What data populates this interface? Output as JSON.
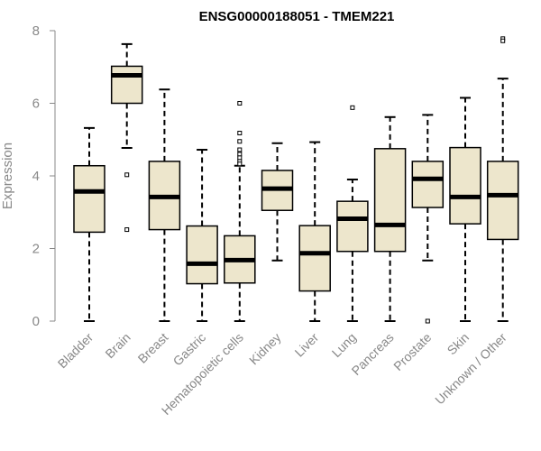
{
  "chart_data": {
    "type": "boxplot",
    "title": "ENSG00000188051 - TMEM221",
    "xlabel": "",
    "ylabel": "Expression",
    "ylim": [
      0,
      8
    ],
    "yticks": [
      "0",
      "2",
      "4",
      "6",
      "8"
    ],
    "box_color": "#EDE6CC",
    "categories": [
      "Bladder",
      "Brain",
      "Breast",
      "Gastric",
      "Hematopoietic cells",
      "Kidney",
      "Liver",
      "Lung",
      "Pancreas",
      "Prostate",
      "Skin",
      "Unknown / Other"
    ],
    "boxes": [
      {
        "name": "Bladder",
        "min": 0.0,
        "q1": 2.45,
        "median": 3.57,
        "q3": 4.28,
        "max": 5.32,
        "outliers": []
      },
      {
        "name": "Brain",
        "min": 4.77,
        "q1": 6.0,
        "median": 6.77,
        "q3": 7.02,
        "max": 7.63,
        "outliers": [
          4.03,
          2.52
        ]
      },
      {
        "name": "Breast",
        "min": 0.0,
        "q1": 2.52,
        "median": 3.42,
        "q3": 4.4,
        "max": 6.38,
        "outliers": []
      },
      {
        "name": "Gastric",
        "min": 0.0,
        "q1": 1.03,
        "median": 1.58,
        "q3": 2.62,
        "max": 4.72,
        "outliers": []
      },
      {
        "name": "Hematopoietic cells",
        "min": 0.0,
        "q1": 1.05,
        "median": 1.68,
        "q3": 2.35,
        "max": 4.28,
        "outliers": [
          6.0,
          5.18,
          4.95,
          4.72,
          4.6,
          4.5,
          4.4,
          4.33
        ]
      },
      {
        "name": "Kidney",
        "min": 1.67,
        "q1": 3.05,
        "median": 3.65,
        "q3": 4.15,
        "max": 4.9,
        "outliers": []
      },
      {
        "name": "Liver",
        "min": 0.0,
        "q1": 0.83,
        "median": 1.87,
        "q3": 2.63,
        "max": 4.93,
        "outliers": []
      },
      {
        "name": "Lung",
        "min": 0.0,
        "q1": 1.92,
        "median": 2.82,
        "q3": 3.3,
        "max": 3.9,
        "outliers": [
          5.88
        ]
      },
      {
        "name": "Pancreas",
        "min": 0.0,
        "q1": 1.92,
        "median": 2.65,
        "q3": 4.75,
        "max": 5.62,
        "outliers": []
      },
      {
        "name": "Prostate",
        "min": 1.67,
        "q1": 3.13,
        "median": 3.92,
        "q3": 4.4,
        "max": 5.68,
        "outliers": [
          0.0
        ]
      },
      {
        "name": "Skin",
        "min": 0.0,
        "q1": 2.68,
        "median": 3.42,
        "q3": 4.78,
        "max": 6.15,
        "outliers": []
      },
      {
        "name": "Unknown / Other",
        "min": 0.0,
        "q1": 2.25,
        "median": 3.47,
        "q3": 4.4,
        "max": 6.68,
        "outliers": [
          7.78,
          7.72
        ]
      }
    ]
  }
}
